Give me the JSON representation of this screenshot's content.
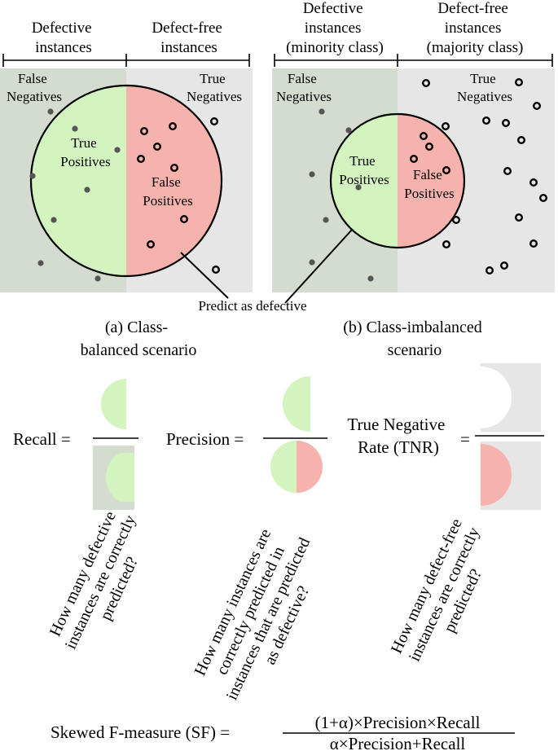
{
  "panel_a": {
    "header_left": [
      "Defective",
      "instances"
    ],
    "header_right": [
      "Defect-free",
      "instances"
    ],
    "label_fn": [
      "False",
      "Negatives"
    ],
    "label_tn": [
      "True",
      "Negatives"
    ],
    "label_tp": [
      "True",
      "Positives"
    ],
    "label_fp": [
      "False",
      "Positives"
    ],
    "caption": [
      "(a) Class-",
      "balanced scenario"
    ]
  },
  "panel_b": {
    "header_left": [
      "Defective",
      "instances",
      "(minority class)"
    ],
    "header_right": [
      "Defect-free",
      "instances",
      "(majority class)"
    ],
    "label_fn": [
      "False",
      "Negatives"
    ],
    "label_tn": [
      "True",
      "Negatives"
    ],
    "label_tp": [
      "True",
      "Positives"
    ],
    "label_fp": [
      "False",
      "Positives"
    ],
    "caption": [
      "(b) Class-imbalanced",
      "scenario"
    ]
  },
  "predict_label": "Predict as defective",
  "metrics": {
    "recall_label": "Recall =",
    "precision_label": "Precision =",
    "tnr_label": [
      "True Negative",
      "Rate (TNR)"
    ],
    "tnr_eq": "=",
    "recall_question": [
      "How many defective",
      "instances are correctly",
      "predicted?"
    ],
    "precision_question": [
      "How many instances are",
      "correctly predicted in",
      "instances that are predicted",
      "as defective?"
    ],
    "tnr_question": [
      "How many defect-free",
      "instances are correctly",
      "predicted?"
    ]
  },
  "formula": {
    "lhs": "Skewed F-measure (SF) =",
    "numerator": "(1+α)×Precision×Recall",
    "denominator": "α×Precision+Recall"
  },
  "colors": {
    "defective_bg": "#d3dcce",
    "defect_free_bg": "#e6e6e6",
    "true_positive": "#d3f3bf",
    "false_positive": "#f6b3ad",
    "line": "#000000",
    "dot": "#555555"
  }
}
